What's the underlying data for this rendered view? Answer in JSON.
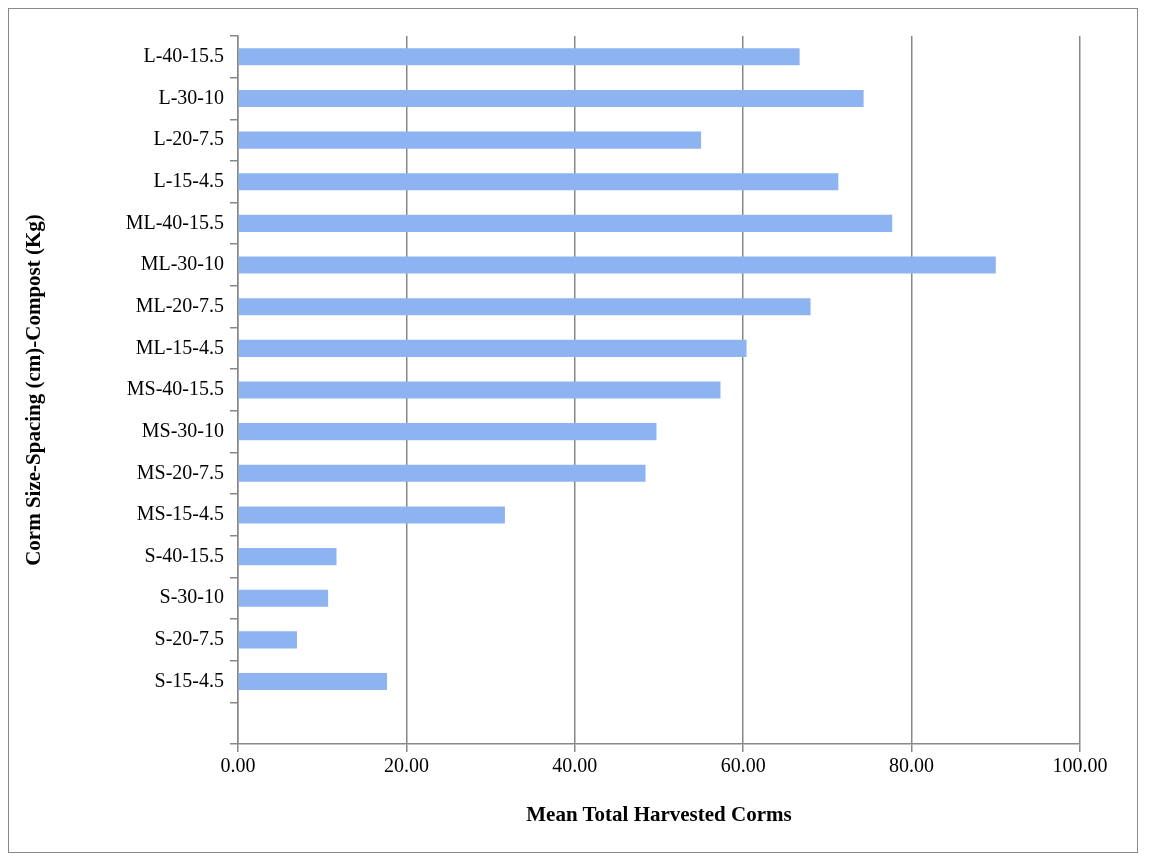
{
  "chart_data": {
    "type": "bar",
    "orientation": "horizontal",
    "xlabel": "Mean Total Harvested Corms",
    "ylabel": "Corm Size-Spacing (cm)-Compost (Kg)",
    "categories": [
      "L-40-15.5",
      "L-30-10",
      "L-20-7.5",
      "L-15-4.5",
      "ML-40-15.5",
      "ML-30-10",
      "ML-20-7.5",
      "ML-15-4.5",
      "MS-40-15.5",
      "MS-30-10",
      "MS-20-7.5",
      "MS-15-4.5",
      "S-40-15.5",
      "S-30-10",
      "S-20-7.5",
      "S-15-4.5",
      null
    ],
    "values": [
      66.7,
      74.3,
      55.0,
      71.3,
      77.7,
      90.0,
      68.0,
      60.4,
      57.3,
      49.7,
      48.4,
      31.7,
      11.7,
      10.7,
      7.0,
      17.7,
      null
    ],
    "color": "#8db3f0",
    "xlim": [
      0,
      100
    ],
    "xticks": [
      {
        "value": 0,
        "label": "0.00"
      },
      {
        "value": 20,
        "label": "20.00"
      },
      {
        "value": 40,
        "label": "40.00"
      },
      {
        "value": 60,
        "label": "60.00"
      },
      {
        "value": 80,
        "label": "80.00"
      },
      {
        "value": 100,
        "label": "100.00"
      }
    ],
    "grid": "x",
    "legend": false
  }
}
